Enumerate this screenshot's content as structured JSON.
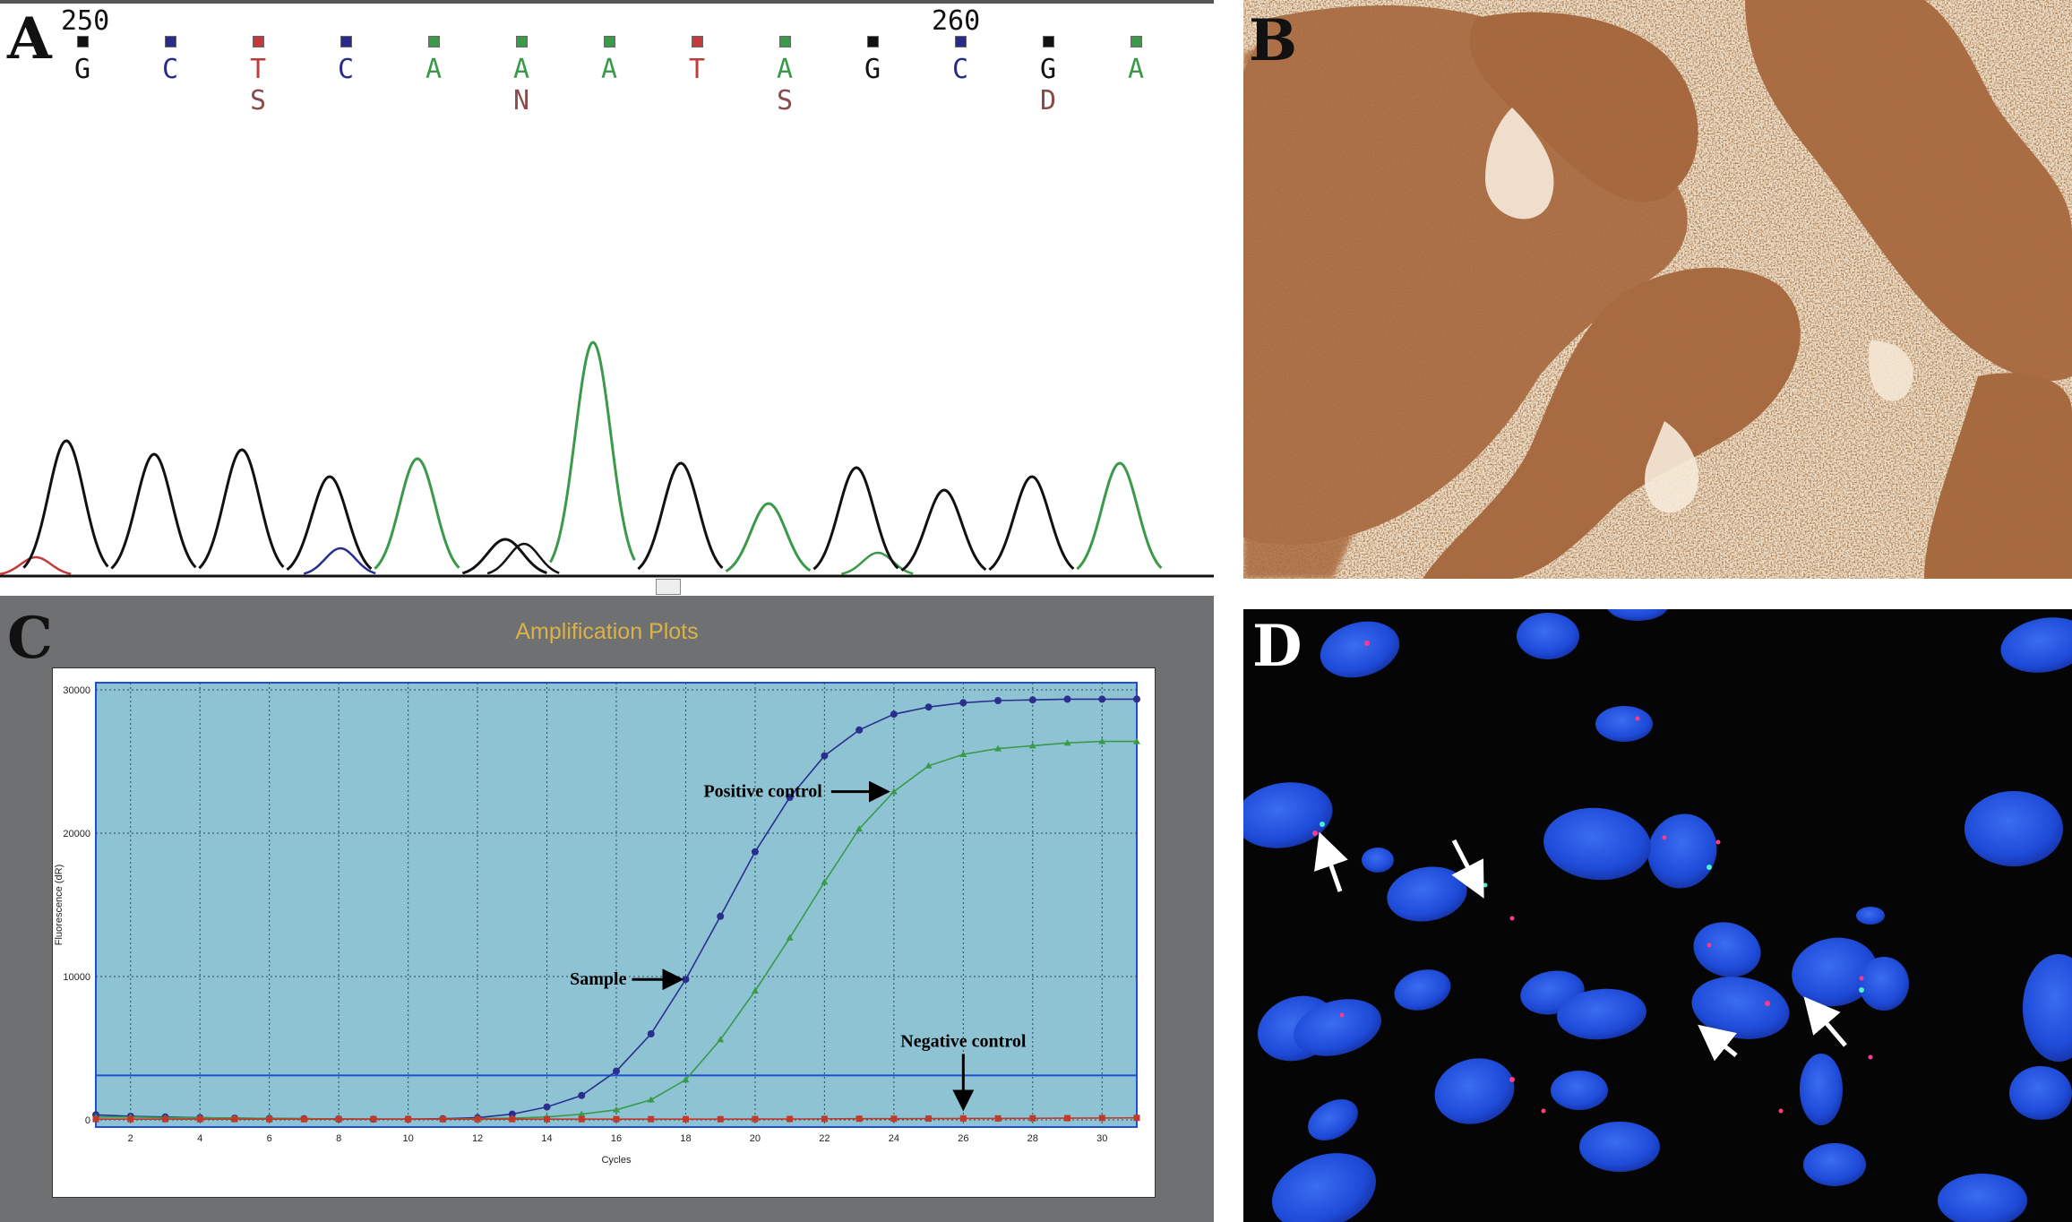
{
  "panels": {
    "a": {
      "letter": "A",
      "positions": [
        "250",
        "260"
      ],
      "bases": [
        {
          "letter": "G",
          "ambiguity": "",
          "color": "#111111"
        },
        {
          "letter": "C",
          "ambiguity": "",
          "color": "#2a2a8a"
        },
        {
          "letter": "T",
          "ambiguity": "S",
          "color": "#c23a3a"
        },
        {
          "letter": "C",
          "ambiguity": "",
          "color": "#2a2a8a"
        },
        {
          "letter": "A",
          "ambiguity": "",
          "color": "#3a9a4a"
        },
        {
          "letter": "A",
          "ambiguity": "N",
          "color": "#3a9a4a"
        },
        {
          "letter": "A",
          "ambiguity": "",
          "color": "#3a9a4a"
        },
        {
          "letter": "T",
          "ambiguity": "",
          "color": "#c23a3a"
        },
        {
          "letter": "A",
          "ambiguity": "S",
          "color": "#3a9a4a"
        },
        {
          "letter": "G",
          "ambiguity": "",
          "color": "#111111"
        },
        {
          "letter": "C",
          "ambiguity": "",
          "color": "#2a2a8a"
        },
        {
          "letter": "G",
          "ambiguity": "D",
          "color": "#111111"
        },
        {
          "letter": "A",
          "ambiguity": "",
          "color": "#3a9a4a"
        }
      ]
    },
    "b": {
      "letter": "B"
    },
    "c": {
      "letter": "C",
      "title": "Amplification Plots"
    },
    "d": {
      "letter": "D"
    }
  },
  "chart_data": {
    "type": "line",
    "title": "Amplification Plots",
    "xlabel": "Cycles",
    "ylabel": "Fluorescence (dR)",
    "xlim": [
      1,
      31
    ],
    "ylim": [
      -500,
      30500
    ],
    "x_ticks": [
      "2",
      "4",
      "6",
      "8",
      "10",
      "12",
      "14",
      "16",
      "18",
      "20",
      "22",
      "24",
      "26",
      "28",
      "30"
    ],
    "y_ticks": [
      "0",
      "10000",
      "20000",
      "30000"
    ],
    "threshold": 3100,
    "grid": true,
    "x": [
      1,
      2,
      3,
      4,
      5,
      6,
      7,
      8,
      9,
      10,
      11,
      12,
      13,
      14,
      15,
      16,
      17,
      18,
      19,
      20,
      21,
      22,
      23,
      24,
      25,
      26,
      27,
      28,
      29,
      30,
      31
    ],
    "series": [
      {
        "name": "Sample",
        "color": "#2a2f8f",
        "marker": "circle",
        "values": [
          350,
          250,
          200,
          150,
          120,
          100,
          80,
          60,
          50,
          50,
          80,
          150,
          400,
          900,
          1700,
          3400,
          6000,
          9800,
          14200,
          18700,
          22500,
          25400,
          27200,
          28300,
          28800,
          29100,
          29250,
          29300,
          29350,
          29350,
          29350
        ]
      },
      {
        "name": "Positive control",
        "color": "#3a9a4a",
        "marker": "triangle",
        "values": [
          200,
          200,
          150,
          150,
          120,
          100,
          80,
          60,
          50,
          50,
          50,
          80,
          120,
          200,
          400,
          700,
          1400,
          2800,
          5600,
          9000,
          12700,
          16600,
          20300,
          22900,
          24700,
          25500,
          25900,
          26100,
          26300,
          26400,
          26400
        ]
      },
      {
        "name": "Negative control",
        "color": "#c0392b",
        "marker": "square",
        "values": [
          50,
          50,
          50,
          50,
          50,
          50,
          50,
          50,
          50,
          50,
          50,
          50,
          50,
          50,
          50,
          50,
          50,
          50,
          50,
          60,
          60,
          70,
          80,
          80,
          90,
          100,
          100,
          110,
          120,
          130,
          140
        ]
      }
    ],
    "annotations": [
      {
        "text": "Positive control",
        "series": 1,
        "target_cycle": 24
      },
      {
        "text": "Sample",
        "series": 0,
        "target_cycle": 18
      },
      {
        "text": "Negative control",
        "series": 2,
        "target_cycle": 26
      }
    ]
  }
}
